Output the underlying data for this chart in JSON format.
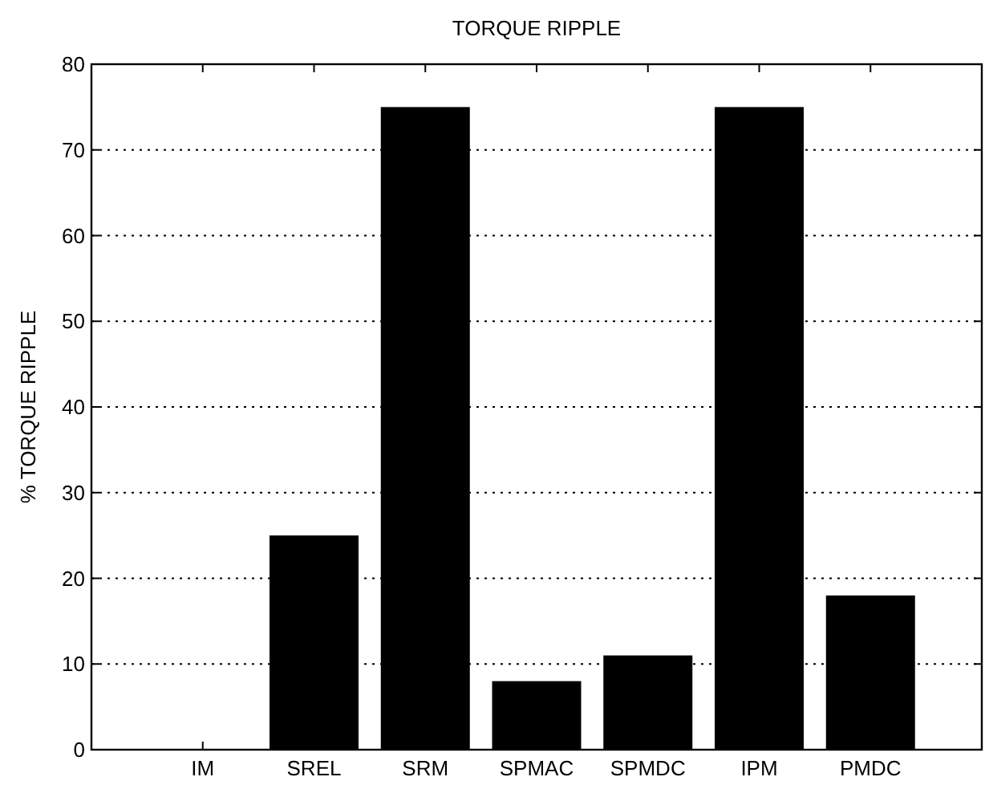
{
  "chart_data": {
    "type": "bar",
    "title": "TORQUE RIPPLE",
    "ylabel": "% TORQUE RIPPLE",
    "categories": [
      "IM",
      "SREL",
      "SRM",
      "SPMAC",
      "SPMDC",
      "IPM",
      "PMDC"
    ],
    "values": [
      0,
      25,
      75,
      8,
      11,
      75,
      18
    ],
    "color": "#000000",
    "ylim": [
      0,
      80
    ],
    "yticks": [
      0,
      10,
      20,
      30,
      40,
      50,
      60,
      70,
      80
    ],
    "grid": "y"
  }
}
